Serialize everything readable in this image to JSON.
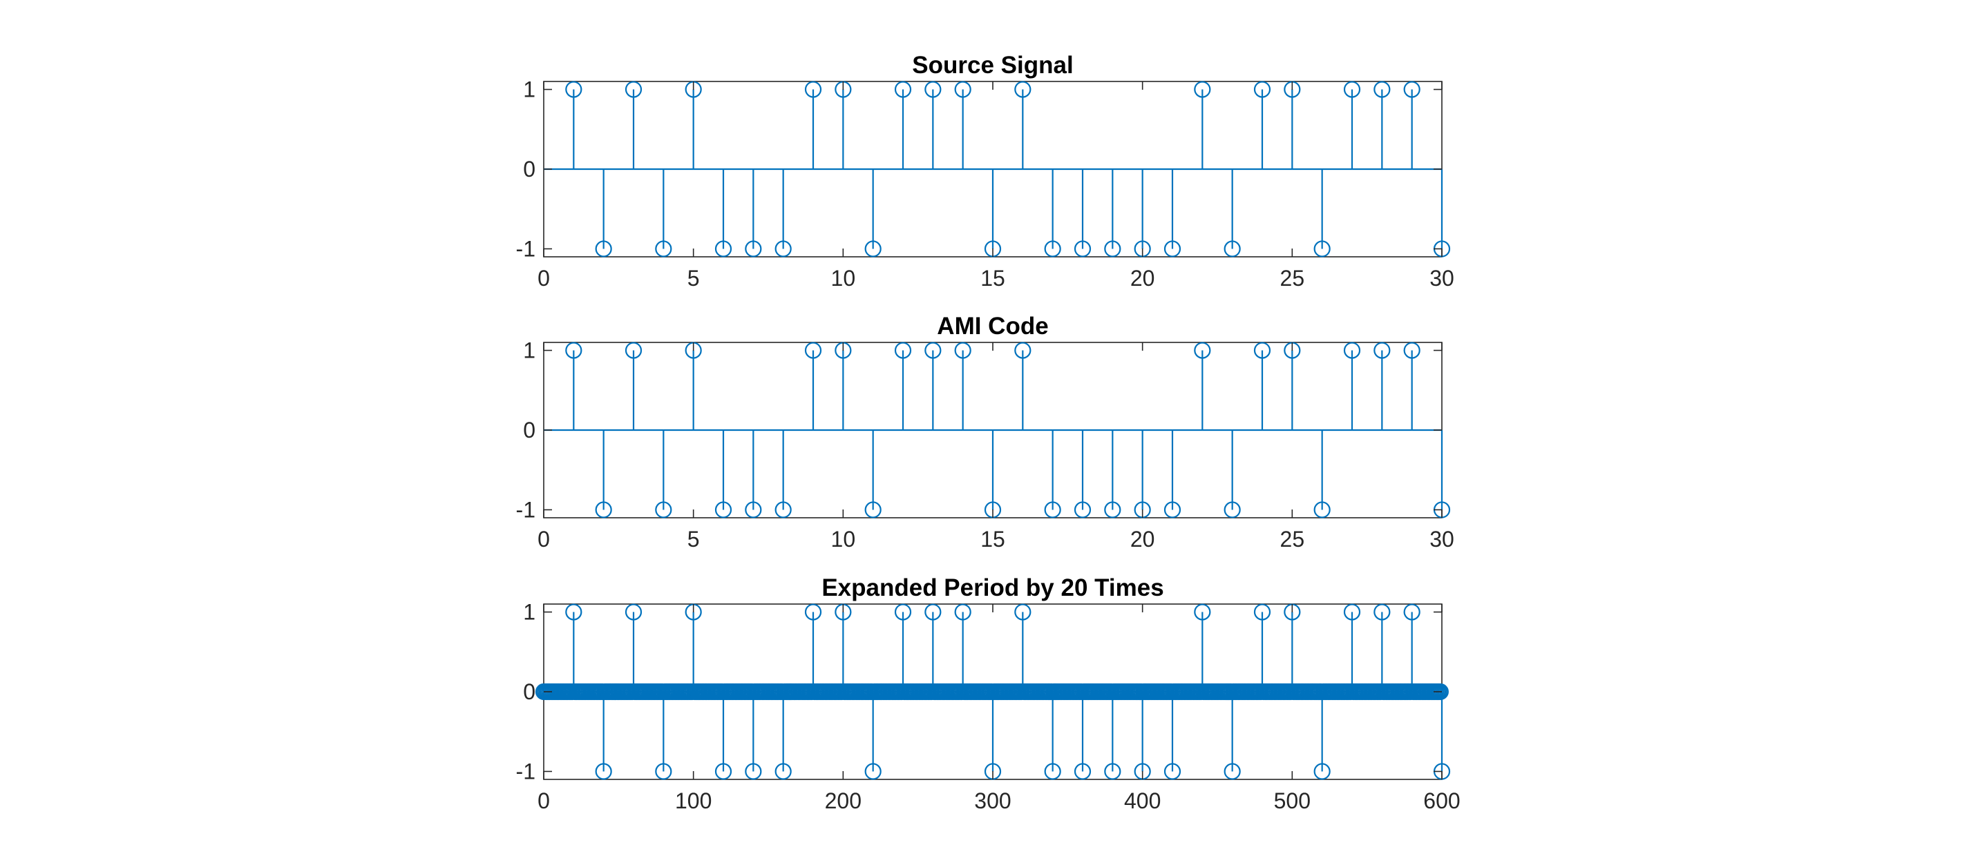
{
  "colors": {
    "series": "#0072BD",
    "axis": "#262626",
    "background": "#ffffff"
  },
  "chart_data": [
    {
      "type": "stem",
      "title": "Source Signal",
      "xlabel": "",
      "ylabel": "",
      "xlim": [
        0,
        30
      ],
      "ylim": [
        -1.1,
        1.1
      ],
      "xticks": [
        0,
        5,
        10,
        15,
        20,
        25,
        30
      ],
      "yticks": [
        -1,
        0,
        1
      ],
      "grid": false,
      "x": [
        1,
        2,
        3,
        4,
        5,
        6,
        7,
        8,
        9,
        10,
        11,
        12,
        13,
        14,
        15,
        16,
        17,
        18,
        19,
        20,
        21,
        22,
        23,
        24,
        25,
        26,
        27,
        28,
        29,
        30
      ],
      "y": [
        1,
        -1,
        1,
        -1,
        1,
        -1,
        -1,
        -1,
        1,
        1,
        -1,
        1,
        1,
        1,
        -1,
        1,
        -1,
        -1,
        -1,
        -1,
        -1,
        1,
        -1,
        1,
        1,
        -1,
        1,
        1,
        1,
        -1
      ]
    },
    {
      "type": "stem",
      "title": "AMI Code",
      "xlabel": "",
      "ylabel": "",
      "xlim": [
        0,
        30
      ],
      "ylim": [
        -1.1,
        1.1
      ],
      "xticks": [
        0,
        5,
        10,
        15,
        20,
        25,
        30
      ],
      "yticks": [
        -1,
        0,
        1
      ],
      "grid": false,
      "x": [
        1,
        2,
        3,
        4,
        5,
        6,
        7,
        8,
        9,
        10,
        11,
        12,
        13,
        14,
        15,
        16,
        17,
        18,
        19,
        20,
        21,
        22,
        23,
        24,
        25,
        26,
        27,
        28,
        29,
        30
      ],
      "y": [
        1,
        -1,
        1,
        -1,
        1,
        -1,
        -1,
        -1,
        1,
        1,
        -1,
        1,
        1,
        1,
        -1,
        1,
        -1,
        -1,
        -1,
        -1,
        -1,
        1,
        -1,
        1,
        1,
        -1,
        1,
        1,
        1,
        -1
      ]
    },
    {
      "type": "stem",
      "title": "Expanded Period by 20 Times",
      "xlabel": "",
      "ylabel": "",
      "xlim": [
        0,
        600
      ],
      "ylim": [
        -1.1,
        1.1
      ],
      "xticks": [
        0,
        100,
        200,
        300,
        400,
        500,
        600
      ],
      "yticks": [
        -1,
        0,
        1
      ],
      "grid": false,
      "expansion_factor": 20,
      "x_range": [
        0,
        600
      ],
      "nonzero_x": [
        20,
        40,
        60,
        80,
        100,
        120,
        140,
        160,
        180,
        200,
        220,
        240,
        260,
        280,
        300,
        320,
        340,
        360,
        380,
        400,
        420,
        440,
        460,
        480,
        500,
        520,
        540,
        560,
        580,
        600
      ],
      "nonzero_y": [
        1,
        -1,
        1,
        -1,
        1,
        -1,
        -1,
        -1,
        1,
        1,
        -1,
        1,
        1,
        1,
        -1,
        1,
        -1,
        -1,
        -1,
        -1,
        -1,
        1,
        -1,
        1,
        1,
        -1,
        1,
        1,
        1,
        -1
      ]
    }
  ]
}
